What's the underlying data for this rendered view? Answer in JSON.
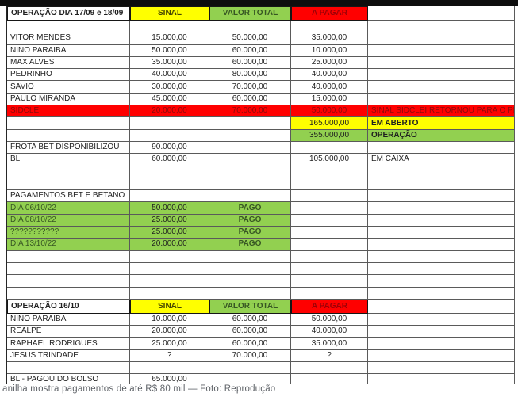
{
  "caption": "anilha mostra pagamentos de até R$ 80 mil — Foto: Reprodução",
  "colors": {
    "header_yellow": "#ffff00",
    "header_green": "#92d050",
    "header_red": "#ff0000",
    "dark_red_text": "#9c0006",
    "dark_green_text": "#375623",
    "red_row_text": "#8a0b0b",
    "grid_line": "#5a5a5a",
    "top_bar": "#0e0e0e"
  },
  "table": {
    "rows": [
      {
        "cls": "header",
        "cells": [
          {
            "t": "OPERAÇÃO DIA 17/09 e 18/09",
            "b": 1
          },
          {
            "t": "SINAL",
            "bg": "yellow",
            "fg": "olive",
            "b": 1
          },
          {
            "t": "VALOR TOTAL",
            "bg": "green",
            "fg": "dgreen",
            "b": 1
          },
          {
            "t": "A PAGAR",
            "bg": "red",
            "fg": "dred",
            "b": 1
          },
          {
            "t": ""
          }
        ]
      },
      {
        "cells": [
          {
            "t": ""
          },
          {
            "t": ""
          },
          {
            "t": ""
          },
          {
            "t": ""
          },
          {
            "t": ""
          }
        ]
      },
      {
        "cells": [
          {
            "t": "VITOR MENDES"
          },
          {
            "t": "15.000,00"
          },
          {
            "t": "50.000,00"
          },
          {
            "t": "35.000,00"
          },
          {
            "t": ""
          }
        ]
      },
      {
        "cells": [
          {
            "t": "NINO PARAIBA"
          },
          {
            "t": "50.000,00"
          },
          {
            "t": "60.000,00"
          },
          {
            "t": "10.000,00"
          },
          {
            "t": ""
          }
        ]
      },
      {
        "cells": [
          {
            "t": "MAX ALVES"
          },
          {
            "t": "35.000,00"
          },
          {
            "t": "60.000,00"
          },
          {
            "t": "25.000,00"
          },
          {
            "t": ""
          }
        ]
      },
      {
        "cells": [
          {
            "t": "PEDRINHO"
          },
          {
            "t": "40.000,00"
          },
          {
            "t": "80.000,00"
          },
          {
            "t": "40.000,00"
          },
          {
            "t": ""
          }
        ]
      },
      {
        "cells": [
          {
            "t": "SAVIO"
          },
          {
            "t": "30.000,00"
          },
          {
            "t": "70.000,00"
          },
          {
            "t": "40.000,00"
          },
          {
            "t": ""
          }
        ]
      },
      {
        "cells": [
          {
            "t": "PAULO MIRANDA"
          },
          {
            "t": "45.000,00"
          },
          {
            "t": "60.000,00"
          },
          {
            "t": "15.000,00"
          },
          {
            "t": ""
          }
        ]
      },
      {
        "cells": [
          {
            "t": "SIDCLEI",
            "bg": "red",
            "fg": "red2"
          },
          {
            "t": "20.000,00",
            "bg": "red",
            "fg": "red2"
          },
          {
            "t": "70.000,00",
            "bg": "red",
            "fg": "red2"
          },
          {
            "t": "50.000,00",
            "bg": "red",
            "fg": "red2"
          },
          {
            "t": "SINAL SIDCLEI RETORNOU PARA O PEDRINHO",
            "bg": "red",
            "fg": "red2"
          }
        ]
      },
      {
        "cells": [
          {
            "t": ""
          },
          {
            "t": ""
          },
          {
            "t": ""
          },
          {
            "t": "165.000,00",
            "bg": "yellow"
          },
          {
            "t": "EM ABERTO",
            "bg": "yellow",
            "b": 1
          }
        ]
      },
      {
        "cells": [
          {
            "t": ""
          },
          {
            "t": ""
          },
          {
            "t": ""
          },
          {
            "t": "355.000,00",
            "bg": "green"
          },
          {
            "t": "OPERAÇÃO",
            "bg": "green",
            "b": 1
          }
        ]
      },
      {
        "cells": [
          {
            "t": "FROTA BET DISPONIBILIZOU"
          },
          {
            "t": "90.000,00"
          },
          {
            "t": ""
          },
          {
            "t": ""
          },
          {
            "t": ""
          }
        ]
      },
      {
        "cells": [
          {
            "t": "BL"
          },
          {
            "t": "60.000,00"
          },
          {
            "t": ""
          },
          {
            "t": "105.000,00"
          },
          {
            "t": "EM CAIXA"
          }
        ]
      },
      {
        "cells": [
          {
            "t": ""
          },
          {
            "t": ""
          },
          {
            "t": ""
          },
          {
            "t": ""
          },
          {
            "t": ""
          }
        ]
      },
      {
        "cells": [
          {
            "t": ""
          },
          {
            "t": ""
          },
          {
            "t": ""
          },
          {
            "t": ""
          },
          {
            "t": ""
          }
        ]
      },
      {
        "cells": [
          {
            "t": "PAGAMENTOS BET E BETANO"
          },
          {
            "t": ""
          },
          {
            "t": ""
          },
          {
            "t": ""
          },
          {
            "t": ""
          }
        ]
      },
      {
        "cells": [
          {
            "t": "DIA 06/10/22",
            "bg": "green",
            "fg": "dgreen"
          },
          {
            "t": "50.000,00",
            "bg": "green"
          },
          {
            "t": "PAGO",
            "bg": "green",
            "fg": "dgreen",
            "b": 1
          },
          {
            "t": ""
          },
          {
            "t": ""
          }
        ]
      },
      {
        "cells": [
          {
            "t": "DIA 08/10/22",
            "bg": "green",
            "fg": "dgreen"
          },
          {
            "t": "25.000,00",
            "bg": "green"
          },
          {
            "t": "PAGO",
            "bg": "green",
            "fg": "dgreen",
            "b": 1
          },
          {
            "t": ""
          },
          {
            "t": ""
          }
        ]
      },
      {
        "cells": [
          {
            "t": "???????????",
            "bg": "green",
            "fg": "dgreen"
          },
          {
            "t": "25.000,00",
            "bg": "green"
          },
          {
            "t": "PAGO",
            "bg": "green",
            "fg": "dgreen",
            "b": 1
          },
          {
            "t": ""
          },
          {
            "t": ""
          }
        ]
      },
      {
        "cells": [
          {
            "t": "DIA 13/10/22",
            "bg": "green",
            "fg": "dgreen"
          },
          {
            "t": "20.000,00",
            "bg": "green"
          },
          {
            "t": "PAGO",
            "bg": "green",
            "fg": "dgreen",
            "b": 1
          },
          {
            "t": ""
          },
          {
            "t": ""
          }
        ]
      },
      {
        "cells": [
          {
            "t": ""
          },
          {
            "t": ""
          },
          {
            "t": ""
          },
          {
            "t": ""
          },
          {
            "t": ""
          }
        ]
      },
      {
        "cells": [
          {
            "t": ""
          },
          {
            "t": ""
          },
          {
            "t": ""
          },
          {
            "t": ""
          },
          {
            "t": ""
          }
        ]
      },
      {
        "cells": [
          {
            "t": ""
          },
          {
            "t": ""
          },
          {
            "t": ""
          },
          {
            "t": ""
          },
          {
            "t": ""
          }
        ]
      },
      {
        "cells": [
          {
            "t": ""
          },
          {
            "t": ""
          },
          {
            "t": ""
          },
          {
            "t": ""
          },
          {
            "t": ""
          }
        ]
      },
      {
        "cls": "header",
        "cells": [
          {
            "t": "OPERAÇÃO 16/10",
            "b": 1
          },
          {
            "t": "SINAL",
            "bg": "yellow",
            "fg": "olive",
            "b": 1
          },
          {
            "t": "VALOR TOTAL",
            "bg": "green",
            "fg": "dgreen",
            "b": 1
          },
          {
            "t": "A PAGAR",
            "bg": "red",
            "fg": "dred",
            "b": 1
          },
          {
            "t": ""
          }
        ]
      },
      {
        "cells": [
          {
            "t": "NINO PARAIBA"
          },
          {
            "t": "10.000,00"
          },
          {
            "t": "60.000,00"
          },
          {
            "t": "50.000,00"
          },
          {
            "t": ""
          }
        ]
      },
      {
        "cells": [
          {
            "t": "REALPE"
          },
          {
            "t": "20.000,00"
          },
          {
            "t": "60.000,00"
          },
          {
            "t": "40.000,00"
          },
          {
            "t": ""
          }
        ]
      },
      {
        "cells": [
          {
            "t": "RAPHAEL RODRIGUES"
          },
          {
            "t": "25.000,00"
          },
          {
            "t": "60.000,00"
          },
          {
            "t": "35.000,00"
          },
          {
            "t": ""
          }
        ]
      },
      {
        "cells": [
          {
            "t": "JESUS TRINDADE"
          },
          {
            "t": "?"
          },
          {
            "t": "70.000,00"
          },
          {
            "t": "?"
          },
          {
            "t": ""
          }
        ]
      },
      {
        "cells": [
          {
            "t": ""
          },
          {
            "t": ""
          },
          {
            "t": ""
          },
          {
            "t": ""
          },
          {
            "t": ""
          }
        ]
      },
      {
        "cells": [
          {
            "t": "BL - PAGOU DO BOLSO"
          },
          {
            "t": "65.000,00"
          },
          {
            "t": ""
          },
          {
            "t": ""
          },
          {
            "t": ""
          }
        ]
      }
    ]
  }
}
